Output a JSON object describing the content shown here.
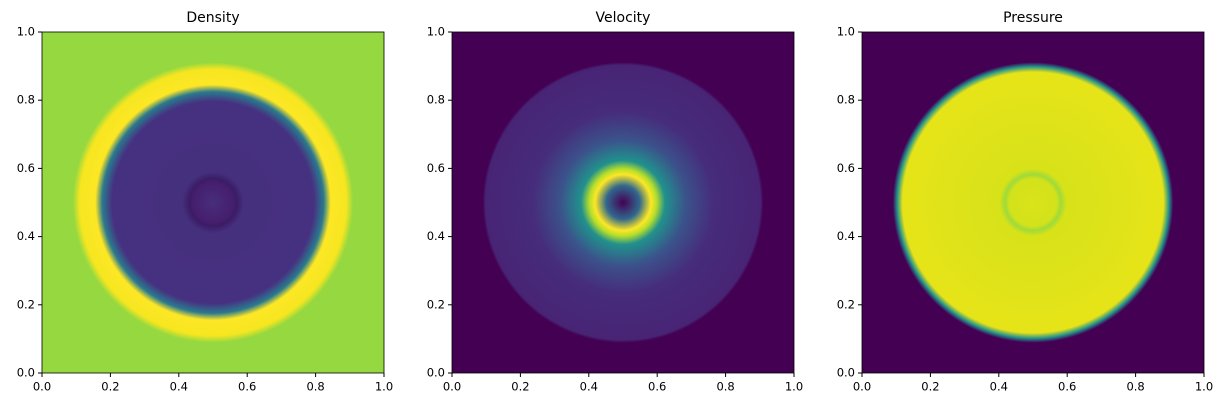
{
  "chart_data": [
    {
      "type": "image",
      "title": "Density",
      "xlim": [
        0,
        1
      ],
      "ylim": [
        0,
        1
      ],
      "xticks": [
        {
          "value": 0,
          "label": "0.0"
        },
        {
          "value": 0.2,
          "label": "0.2"
        },
        {
          "value": 0.4,
          "label": "0.4"
        },
        {
          "value": 0.6,
          "label": "0.6"
        },
        {
          "value": 0.8,
          "label": "0.8"
        },
        {
          "value": 1,
          "label": "1.0"
        }
      ],
      "yticks": [
        {
          "value": 0,
          "label": "0.0"
        },
        {
          "value": 0.2,
          "label": "0.2"
        },
        {
          "value": 0.4,
          "label": "0.4"
        },
        {
          "value": 0.6,
          "label": "0.6"
        },
        {
          "value": 0.8,
          "label": "0.8"
        },
        {
          "value": 1,
          "label": "1.0"
        }
      ]
    },
    {
      "type": "image",
      "title": "Velocity",
      "xlim": [
        0,
        1
      ],
      "ylim": [
        0,
        1
      ],
      "xticks": [
        {
          "value": 0,
          "label": "0.0"
        },
        {
          "value": 0.2,
          "label": "0.2"
        },
        {
          "value": 0.4,
          "label": "0.4"
        },
        {
          "value": 0.6,
          "label": "0.6"
        },
        {
          "value": 0.8,
          "label": "0.8"
        },
        {
          "value": 1,
          "label": "1.0"
        }
      ],
      "yticks": [
        {
          "value": 0,
          "label": "0.0"
        },
        {
          "value": 0.2,
          "label": "0.2"
        },
        {
          "value": 0.4,
          "label": "0.4"
        },
        {
          "value": 0.6,
          "label": "0.6"
        },
        {
          "value": 0.8,
          "label": "0.8"
        },
        {
          "value": 1,
          "label": "1.0"
        }
      ]
    },
    {
      "type": "image",
      "title": "Pressure",
      "xlim": [
        0,
        1
      ],
      "ylim": [
        0,
        1
      ],
      "xticks": [
        {
          "value": 0,
          "label": "0.0"
        },
        {
          "value": 0.2,
          "label": "0.2"
        },
        {
          "value": 0.4,
          "label": "0.4"
        },
        {
          "value": 0.6,
          "label": "0.6"
        },
        {
          "value": 0.8,
          "label": "0.8"
        },
        {
          "value": 1,
          "label": "1.0"
        }
      ],
      "yticks": [
        {
          "value": 0,
          "label": "0.0"
        },
        {
          "value": 0.2,
          "label": "0.2"
        },
        {
          "value": 0.4,
          "label": "0.4"
        },
        {
          "value": 0.6,
          "label": "0.6"
        },
        {
          "value": 0.8,
          "label": "0.8"
        },
        {
          "value": 1,
          "label": "1.0"
        }
      ]
    }
  ]
}
